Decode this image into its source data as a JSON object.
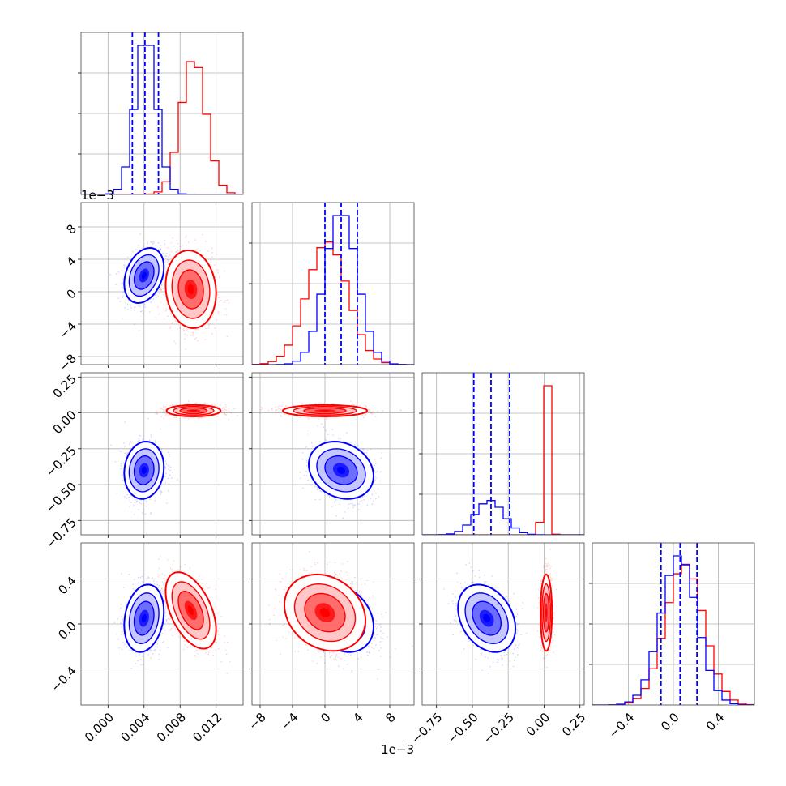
{
  "chart_data": {
    "type": "corner",
    "grid": true,
    "colors": {
      "blue": "#0000ff",
      "red": "#ff0000"
    },
    "offset_labels": {
      "row1_y": "1e−3",
      "col1_x": "1e−3"
    },
    "params": [
      {
        "range": [
          -0.003,
          0.015
        ],
        "ticks": [
          0.0,
          0.004,
          0.008,
          0.012
        ],
        "ticklabels": [
          "0.000",
          "0.004",
          "0.008",
          "0.012"
        ],
        "blue": {
          "mean": 0.0042,
          "sd": 0.0012,
          "quantiles": [
            0.0027,
            0.0041,
            0.0056
          ]
        },
        "red": {
          "mean": 0.0095,
          "sd": 0.0014
        }
      },
      {
        "range": [
          -9,
          11
        ],
        "ticks": [
          -8,
          -4,
          0,
          4,
          8
        ],
        "ticklabels": [
          "−8",
          "−4",
          "0",
          "4",
          "8"
        ],
        "blue": {
          "mean": 2.0,
          "sd": 2.0,
          "quantiles": [
            0.0,
            2.0,
            4.0
          ]
        },
        "red": {
          "mean": 0.3,
          "sd": 2.5
        }
      },
      {
        "range": [
          -0.85,
          0.28
        ],
        "ticks": [
          -0.75,
          -0.5,
          -0.25,
          0.0,
          0.25
        ],
        "ticklabels": [
          "−0.75",
          "−0.50",
          "−0.25",
          "0.00",
          "0.25"
        ],
        "blue": {
          "mean": -0.38,
          "sd": 0.1,
          "quantiles": [
            -0.49,
            -0.37,
            -0.24
          ]
        },
        "red": {
          "mean": 0.015,
          "sd": 0.02
        }
      },
      {
        "range": [
          -0.72,
          0.72
        ],
        "ticks": [
          -0.4,
          0.0,
          0.4
        ],
        "ticklabels": [
          "−0.4",
          "0.0",
          "0.4"
        ],
        "blue": {
          "mean": 0.05,
          "sd": 0.16,
          "quantiles": [
            -0.11,
            0.06,
            0.21
          ]
        },
        "red": {
          "mean": 0.1,
          "sd": 0.17
        }
      }
    ],
    "pairs": [
      {
        "row": 1,
        "col": 0,
        "blue": {
          "mean": [
            0.004,
            2.0
          ],
          "sd": [
            0.0011,
            1.7
          ],
          "rho": 0.3
        },
        "red": {
          "mean": [
            0.0092,
            0.3
          ],
          "sd": [
            0.0014,
            2.4
          ],
          "rho": -0.1
        }
      },
      {
        "row": 2,
        "col": 0,
        "blue": {
          "mean": [
            0.004,
            -0.4
          ],
          "sd": [
            0.0011,
            0.1
          ],
          "rho": 0.1
        },
        "red": {
          "mean": [
            0.0095,
            0.015
          ],
          "sd": [
            0.0015,
            0.02
          ],
          "rho": 0.0
        }
      },
      {
        "row": 2,
        "col": 1,
        "blue": {
          "mean": [
            2.0,
            -0.4
          ],
          "sd": [
            2.0,
            0.1
          ],
          "rho": -0.2
        },
        "red": {
          "mean": [
            0.0,
            0.015
          ],
          "sd": [
            2.6,
            0.02
          ],
          "rho": 0.0
        }
      },
      {
        "row": 3,
        "col": 0,
        "blue": {
          "mean": [
            0.004,
            0.05
          ],
          "sd": [
            0.0011,
            0.15
          ],
          "rho": 0.2
        },
        "red": {
          "mean": [
            0.0092,
            0.12
          ],
          "sd": [
            0.0014,
            0.17
          ],
          "rho": -0.5
        }
      },
      {
        "row": 3,
        "col": 1,
        "blue": {
          "mean": [
            2.0,
            0.05
          ],
          "sd": [
            2.0,
            0.15
          ],
          "rho": -0.25
        },
        "red": {
          "mean": [
            0.0,
            0.1
          ],
          "sd": [
            2.5,
            0.17
          ],
          "rho": -0.2
        }
      },
      {
        "row": 3,
        "col": 2,
        "blue": {
          "mean": [
            -0.4,
            0.05
          ],
          "sd": [
            0.1,
            0.15
          ],
          "rho": -0.3
        },
        "red": {
          "mean": [
            0.015,
            0.1
          ],
          "sd": [
            0.02,
            0.17
          ],
          "rho": 0.0
        }
      }
    ]
  }
}
